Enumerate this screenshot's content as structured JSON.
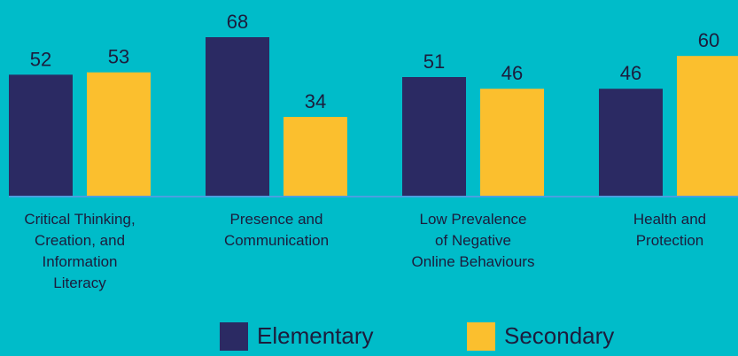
{
  "chart_data": {
    "type": "bar",
    "categories": [
      "Critical Thinking,\nCreation, and\nInformation\nLiteracy",
      "Presence and\nCommunication",
      "Low Prevalence\nof Negative\nOnline Behaviours",
      "Health and\nProtection"
    ],
    "series": [
      {
        "name": "Elementary",
        "color": "#2b2a63",
        "values": [
          52,
          68,
          51,
          46
        ]
      },
      {
        "name": "Secondary",
        "color": "#fbbf2e",
        "values": [
          53,
          34,
          46,
          60
        ]
      }
    ]
  }
}
